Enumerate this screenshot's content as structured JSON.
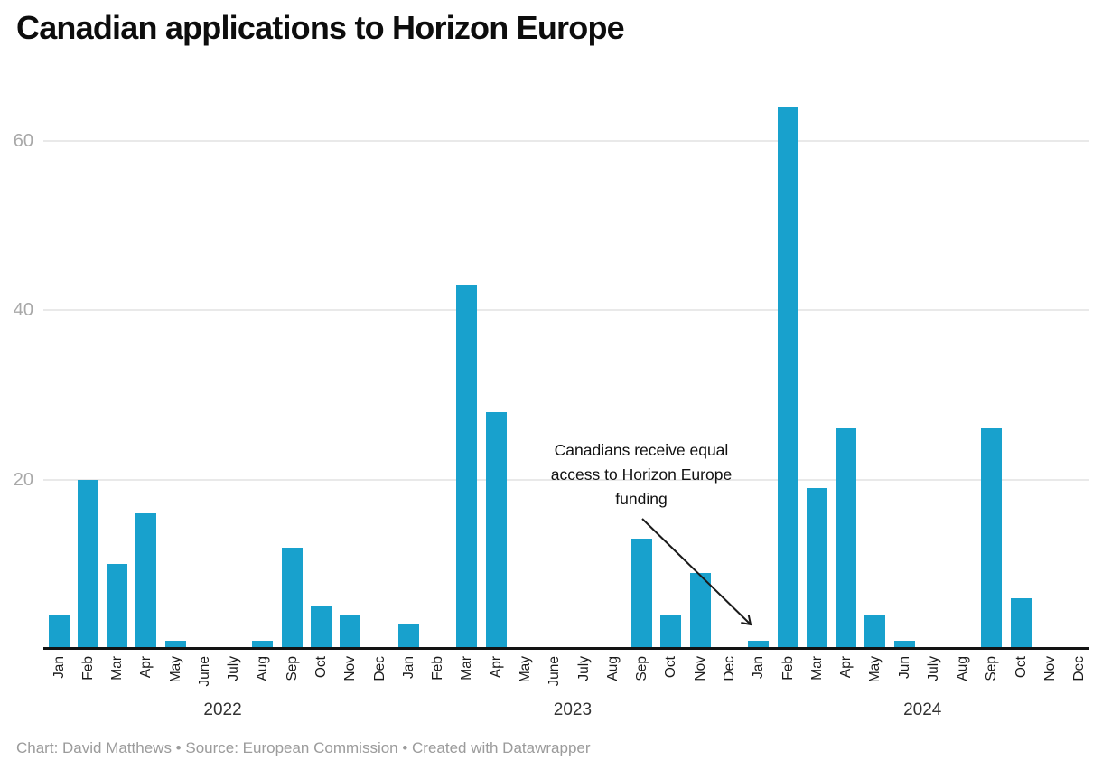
{
  "chart": {
    "title": "Canadian applications to Horizon Europe",
    "footer": "Chart: David Matthews • Source: European Commission • Created with Datawrapper",
    "annotation": {
      "text": "Canadians receive equal\naccess to Horizon Europe\nfunding",
      "points_to": "Jan 2024"
    },
    "colors": {
      "bar": "#18a1cd",
      "gridline": "#e9e9e9",
      "axis": "#131313",
      "tick_label": "#a8a8a8",
      "month_label": "#1a1a1a",
      "year_label": "#333333",
      "footer_text": "#9b9b9b",
      "annotation_text": "#111111"
    }
  },
  "chart_data": {
    "type": "bar",
    "title": "Canadian applications to Horizon Europe",
    "xlabel": "",
    "ylabel": "",
    "ylim": [
      0,
      65
    ],
    "y_ticks": [
      20,
      40,
      60
    ],
    "grid": true,
    "legend": false,
    "years": [
      {
        "label": "2022",
        "month_labels": [
          "Jan",
          "Feb",
          "Mar",
          "Apr",
          "May",
          "June",
          "July",
          "Aug",
          "Sep",
          "Oct",
          "Nov",
          "Dec"
        ],
        "values": [
          4,
          20,
          10,
          16,
          1,
          0,
          0,
          1,
          12,
          5,
          4,
          0
        ]
      },
      {
        "label": "2023",
        "month_labels": [
          "Jan",
          "Feb",
          "Mar",
          "Apr",
          "May",
          "June",
          "July",
          "Aug",
          "Sep",
          "Oct",
          "Nov",
          "Dec"
        ],
        "values": [
          3,
          0,
          43,
          28,
          0,
          0,
          0,
          0,
          13,
          4,
          9,
          0
        ]
      },
      {
        "label": "2024",
        "month_labels": [
          "Jan",
          "Feb",
          "Mar",
          "Apr",
          "May",
          "Jun",
          "July",
          "Aug",
          "Sep",
          "Oct",
          "Nov",
          "Dec"
        ],
        "values": [
          1,
          64,
          19,
          26,
          4,
          1,
          0,
          0,
          26,
          6,
          0,
          0
        ]
      }
    ]
  }
}
